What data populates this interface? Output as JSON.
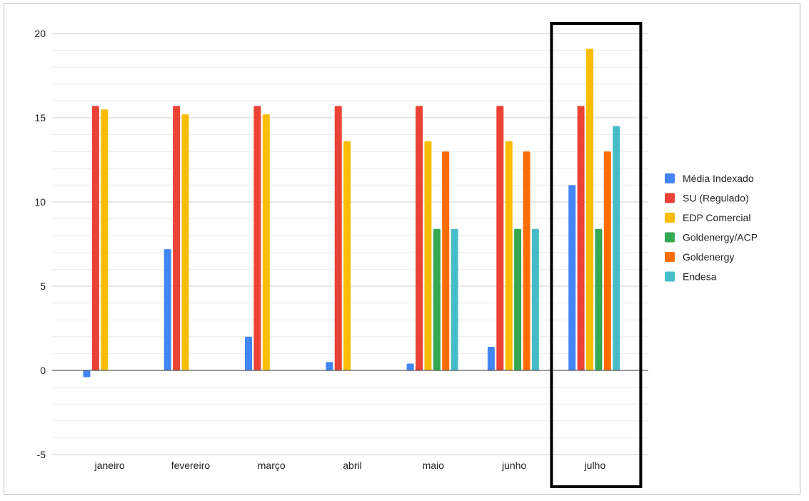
{
  "chart_data": {
    "type": "bar",
    "title": "",
    "xlabel": "",
    "ylabel": "",
    "ylim": [
      -5,
      20
    ],
    "yticks": [
      "20",
      "15",
      "10",
      "5",
      "0",
      "-5"
    ],
    "ytick_values": [
      20,
      15,
      10,
      5,
      0,
      -5
    ],
    "grid": true,
    "legend_position": "right",
    "categories": [
      "janeiro",
      "fevereiro",
      "março",
      "abril",
      "maio",
      "junho",
      "julho"
    ],
    "highlighted_category": "julho",
    "series": [
      {
        "name": "Média Indexado",
        "color": "#4285f4",
        "values": [
          -0.4,
          7.2,
          2.0,
          0.5,
          0.4,
          1.4,
          11.0
        ]
      },
      {
        "name": "SU (Regulado)",
        "color": "#ea4335",
        "values": [
          15.7,
          15.7,
          15.7,
          15.7,
          15.7,
          15.7,
          15.7
        ]
      },
      {
        "name": "EDP Comercial",
        "color": "#fbbc04",
        "values": [
          15.5,
          15.2,
          15.2,
          13.6,
          13.6,
          13.6,
          19.1
        ]
      },
      {
        "name": "Goldenergy/ACP",
        "color": "#34a853",
        "values": [
          null,
          null,
          null,
          null,
          8.4,
          8.4,
          8.4
        ]
      },
      {
        "name": "Goldenergy",
        "color": "#ff6d01",
        "values": [
          null,
          null,
          null,
          null,
          13.0,
          13.0,
          13.0
        ]
      },
      {
        "name": "Endesa",
        "color": "#46bdc6",
        "values": [
          null,
          null,
          null,
          null,
          8.4,
          8.4,
          14.5
        ]
      }
    ]
  }
}
